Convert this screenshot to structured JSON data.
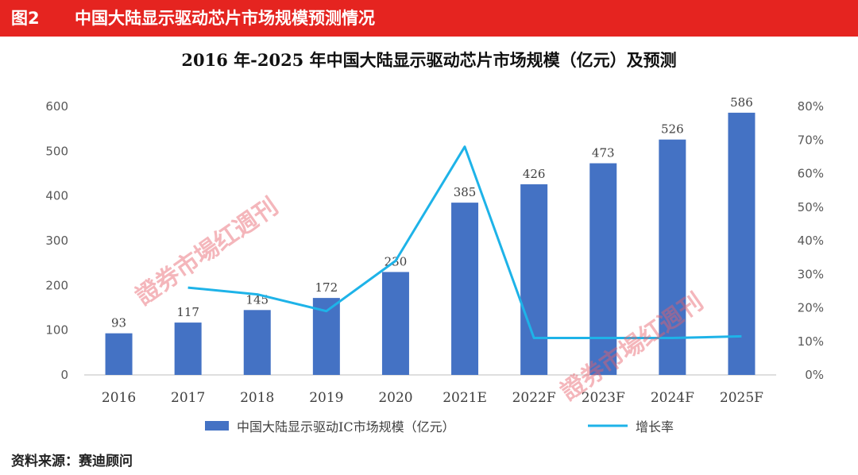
{
  "figure": {
    "number": "图2",
    "caption": "中国大陆显示驱动芯片市场规模预测情况",
    "source": "资料来源：赛迪顾问"
  },
  "watermark": {
    "text": "證券市場红週刊"
  },
  "chart_data": {
    "type": "bar",
    "title": "2016 年-2025 年中国大陆显示驱动芯片市场规模（亿元）及预测",
    "categories": [
      "2016",
      "2017",
      "2018",
      "2019",
      "2020",
      "2021E",
      "2022F",
      "2023F",
      "2024F",
      "2025F"
    ],
    "series": [
      {
        "name": "中国大陆显示驱动IC市场规模（亿元）",
        "type": "bar",
        "axis": "left",
        "color": "#4472c4",
        "values": [
          93,
          117,
          145,
          172,
          230,
          385,
          426,
          473,
          526,
          586
        ]
      },
      {
        "name": "增长率",
        "type": "line",
        "axis": "right",
        "color": "#1eb3e8",
        "values": [
          null,
          26,
          24,
          19,
          34,
          68,
          11,
          11,
          11,
          11.5
        ]
      }
    ],
    "y_left": {
      "min": 0,
      "max": 600,
      "step": 100,
      "ticks": [
        "0",
        "100",
        "200",
        "300",
        "400",
        "500",
        "600"
      ]
    },
    "y_right": {
      "min": 0,
      "max": 80,
      "step": 10,
      "ticks": [
        "0%",
        "10%",
        "20%",
        "30%",
        "40%",
        "50%",
        "60%",
        "70%",
        "80%"
      ]
    },
    "grid": false,
    "legend_position": "bottom"
  }
}
